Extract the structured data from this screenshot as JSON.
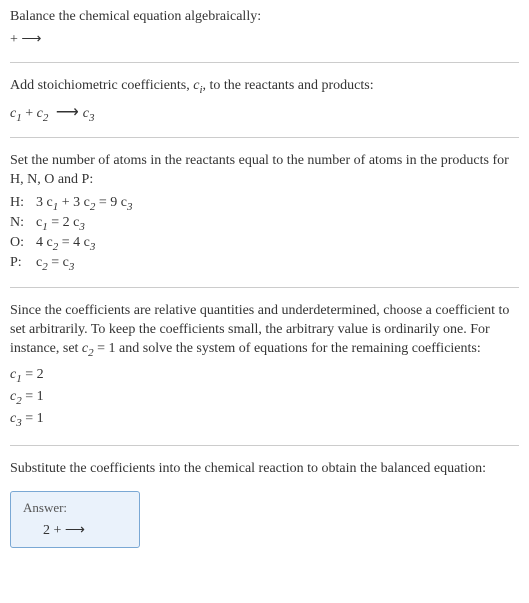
{
  "intro": {
    "title": "Balance the chemical equation algebraically:",
    "equation": " + ⟶"
  },
  "step1": {
    "text_part1": "Add stoichiometric coefficients, ",
    "ci": "c",
    "ci_sub": "i",
    "text_part2": ", to the reactants and products:",
    "equation_c1": "c",
    "equation_c1_sub": "1",
    "equation_plus": " + ",
    "equation_c2": "c",
    "equation_c2_sub": "2",
    "equation_arrow": " ⟶ ",
    "equation_c3": "c",
    "equation_c3_sub": "3"
  },
  "step2": {
    "text": "Set the number of atoms in the reactants equal to the number of atoms in the products for H, N, O and P:",
    "rows": [
      {
        "label": "H:",
        "c1": "3 c",
        "s1": "1",
        "plus": " + 3 c",
        "s2": "2",
        "eq": " = 9 c",
        "s3": "3"
      },
      {
        "label": "N:",
        "c1": "c",
        "s1": "1",
        "plus": "",
        "s2": "",
        "eq": " = 2 c",
        "s3": "3"
      },
      {
        "label": "O:",
        "c1": "4 c",
        "s1": "2",
        "plus": "",
        "s2": "",
        "eq": " = 4 c",
        "s3": "3"
      },
      {
        "label": "P:",
        "c1": "c",
        "s1": "2",
        "plus": "",
        "s2": "",
        "eq": " = c",
        "s3": "3"
      }
    ]
  },
  "step3": {
    "text_part1": "Since the coefficients are relative quantities and underdetermined, choose a coefficient to set arbitrarily. To keep the coefficients small, the arbitrary value is ordinarily one. For instance, set ",
    "c2": "c",
    "c2_sub": "2",
    "text_part2": " = 1 and solve the system of equations for the remaining coefficients:",
    "coeffs": [
      {
        "c": "c",
        "sub": "1",
        "val": " = 2"
      },
      {
        "c": "c",
        "sub": "2",
        "val": " = 1"
      },
      {
        "c": "c",
        "sub": "3",
        "val": " = 1"
      }
    ]
  },
  "step4": {
    "text": "Substitute the coefficients into the chemical reaction to obtain the balanced equation:"
  },
  "answer": {
    "label": "Answer:",
    "equation": "2  +  ⟶"
  },
  "colors": {
    "text": "#333333",
    "divider": "#cccccc",
    "box_border": "#7aa8d4",
    "box_bg": "#eaf2fb"
  }
}
